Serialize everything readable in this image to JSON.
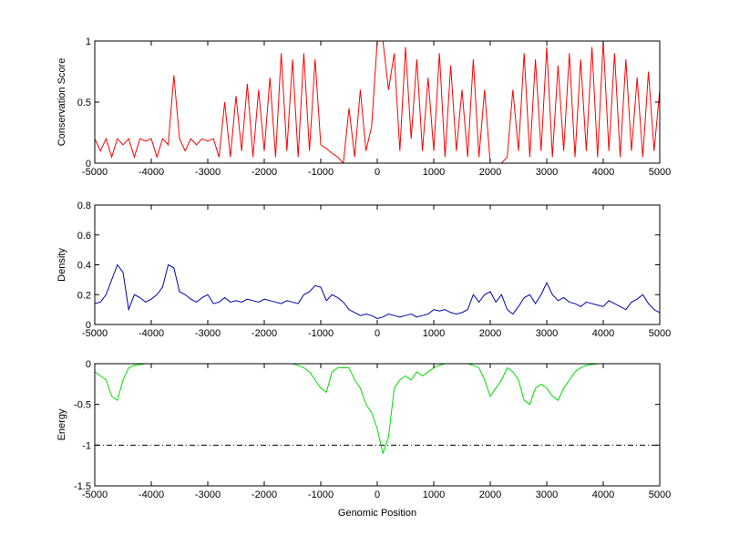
{
  "chart_data": [
    {
      "type": "line",
      "ylabel": "Conservation Score",
      "color": "#ff0000",
      "xlim": [
        -5000,
        5000
      ],
      "xticks": [
        -5000,
        -4000,
        -3000,
        -2000,
        -1000,
        0,
        1000,
        2000,
        3000,
        4000,
        5000
      ],
      "ylim": [
        0,
        1
      ],
      "yticks": [
        0,
        0.5,
        1
      ],
      "x": [
        -5000,
        -4900,
        -4800,
        -4700,
        -4600,
        -4500,
        -4400,
        -4300,
        -4200,
        -4100,
        -4000,
        -3900,
        -3800,
        -3700,
        -3600,
        -3500,
        -3400,
        -3300,
        -3200,
        -3100,
        -3000,
        -2900,
        -2800,
        -2700,
        -2600,
        -2500,
        -2400,
        -2300,
        -2200,
        -2100,
        -2000,
        -1900,
        -1800,
        -1700,
        -1600,
        -1500,
        -1400,
        -1300,
        -1200,
        -1100,
        -1000,
        -900,
        -800,
        -700,
        -600,
        -500,
        -400,
        -300,
        -200,
        -100,
        0,
        100,
        200,
        300,
        400,
        500,
        600,
        700,
        800,
        900,
        1000,
        1100,
        1200,
        1300,
        1400,
        1500,
        1600,
        1700,
        1800,
        1900,
        2000,
        2100,
        2200,
        2300,
        2400,
        2500,
        2600,
        2700,
        2800,
        2900,
        3000,
        3100,
        3200,
        3300,
        3400,
        3500,
        3600,
        3700,
        3800,
        3900,
        4000,
        4100,
        4200,
        4300,
        4400,
        4500,
        4600,
        4700,
        4800,
        4900,
        5000
      ],
      "values": [
        0.2,
        0.1,
        0.2,
        0.05,
        0.2,
        0.15,
        0.2,
        0.05,
        0.2,
        0.18,
        0.2,
        0.05,
        0.2,
        0.15,
        0.72,
        0.2,
        0.1,
        0.2,
        0.15,
        0.2,
        0.18,
        0.2,
        0.05,
        0.5,
        0.05,
        0.55,
        0.1,
        0.65,
        0.05,
        0.6,
        0.1,
        0.7,
        0.05,
        0.9,
        0.1,
        0.85,
        0.05,
        0.9,
        0.1,
        0.85,
        0.15,
        0.12,
        0.08,
        0.05,
        0,
        0.45,
        0.05,
        0.6,
        0.1,
        0.3,
        1,
        1,
        0.6,
        0.9,
        0.1,
        0.95,
        0.2,
        0.85,
        0.1,
        0.7,
        0.1,
        0.9,
        0.05,
        0.8,
        0.1,
        0.6,
        0.05,
        0.85,
        0.05,
        0.6,
        0,
        0,
        0,
        0.05,
        0.6,
        0.1,
        0.9,
        0.05,
        0.85,
        0.1,
        0.95,
        0.05,
        0.8,
        0.1,
        0.9,
        0.05,
        0.85,
        0.1,
        0.95,
        0.05,
        1,
        0.1,
        0.9,
        0.05,
        0.85,
        0.1,
        0.7,
        0.05,
        0.75,
        0.1,
        0.6
      ]
    },
    {
      "type": "line",
      "ylabel": "Density",
      "color": "#0000b0",
      "xlim": [
        -5000,
        5000
      ],
      "xticks": [
        -5000,
        -4000,
        -3000,
        -2000,
        -1000,
        0,
        1000,
        2000,
        3000,
        4000,
        5000
      ],
      "ylim": [
        0,
        0.8
      ],
      "yticks": [
        0,
        0.2,
        0.4,
        0.6,
        0.8
      ],
      "x": [
        -5000,
        -4900,
        -4800,
        -4700,
        -4600,
        -4500,
        -4400,
        -4300,
        -4200,
        -4100,
        -4000,
        -3900,
        -3800,
        -3700,
        -3600,
        -3500,
        -3400,
        -3300,
        -3200,
        -3100,
        -3000,
        -2900,
        -2800,
        -2700,
        -2600,
        -2500,
        -2400,
        -2300,
        -2200,
        -2100,
        -2000,
        -1900,
        -1800,
        -1700,
        -1600,
        -1500,
        -1400,
        -1300,
        -1200,
        -1100,
        -1000,
        -900,
        -800,
        -700,
        -600,
        -500,
        -400,
        -300,
        -200,
        -100,
        0,
        100,
        200,
        300,
        400,
        500,
        600,
        700,
        800,
        900,
        1000,
        1100,
        1200,
        1300,
        1400,
        1500,
        1600,
        1700,
        1800,
        1900,
        2000,
        2100,
        2200,
        2300,
        2400,
        2500,
        2600,
        2700,
        2800,
        2900,
        3000,
        3100,
        3200,
        3300,
        3400,
        3500,
        3600,
        3700,
        3800,
        3900,
        4000,
        4100,
        4200,
        4300,
        4400,
        4500,
        4600,
        4700,
        4800,
        4900,
        5000
      ],
      "values": [
        0.14,
        0.15,
        0.2,
        0.3,
        0.4,
        0.35,
        0.1,
        0.2,
        0.18,
        0.15,
        0.17,
        0.2,
        0.25,
        0.4,
        0.38,
        0.22,
        0.2,
        0.17,
        0.15,
        0.18,
        0.2,
        0.14,
        0.15,
        0.18,
        0.15,
        0.16,
        0.15,
        0.17,
        0.16,
        0.15,
        0.17,
        0.16,
        0.15,
        0.14,
        0.16,
        0.15,
        0.14,
        0.2,
        0.22,
        0.26,
        0.25,
        0.16,
        0.2,
        0.18,
        0.15,
        0.1,
        0.08,
        0.06,
        0.07,
        0.06,
        0.04,
        0.05,
        0.07,
        0.06,
        0.05,
        0.06,
        0.07,
        0.05,
        0.06,
        0.07,
        0.1,
        0.09,
        0.1,
        0.08,
        0.07,
        0.08,
        0.1,
        0.2,
        0.15,
        0.2,
        0.22,
        0.15,
        0.2,
        0.1,
        0.07,
        0.12,
        0.18,
        0.2,
        0.14,
        0.2,
        0.28,
        0.2,
        0.16,
        0.18,
        0.15,
        0.14,
        0.12,
        0.15,
        0.14,
        0.13,
        0.12,
        0.16,
        0.14,
        0.12,
        0.1,
        0.15,
        0.17,
        0.2,
        0.14,
        0.1,
        0.08
      ]
    },
    {
      "type": "line",
      "ylabel": "Energy",
      "xlabel": "Genomic Position",
      "color": "#00dd00",
      "xlim": [
        -5000,
        5000
      ],
      "xticks": [
        -5000,
        -4000,
        -3000,
        -2000,
        -1000,
        0,
        1000,
        2000,
        3000,
        4000,
        5000
      ],
      "ylim": [
        -1.5,
        0
      ],
      "yticks": [
        -1.5,
        -1,
        -0.5,
        0
      ],
      "reference_line": {
        "value": -1,
        "style": "dash-dot",
        "color": "#000000"
      },
      "x": [
        -5000,
        -4900,
        -4800,
        -4700,
        -4600,
        -4500,
        -4400,
        -4300,
        -4200,
        -4100,
        -4000,
        -3900,
        -3800,
        -3700,
        -3600,
        -3500,
        -3400,
        -3300,
        -3200,
        -3100,
        -3000,
        -2900,
        -2800,
        -2700,
        -2600,
        -2500,
        -2400,
        -2300,
        -2200,
        -2100,
        -2000,
        -1900,
        -1800,
        -1700,
        -1600,
        -1500,
        -1400,
        -1300,
        -1200,
        -1100,
        -1000,
        -900,
        -800,
        -700,
        -600,
        -500,
        -400,
        -300,
        -200,
        -100,
        0,
        100,
        200,
        300,
        400,
        500,
        600,
        700,
        800,
        900,
        1000,
        1100,
        1200,
        1300,
        1400,
        1500,
        1600,
        1700,
        1800,
        1900,
        2000,
        2100,
        2200,
        2300,
        2400,
        2500,
        2600,
        2700,
        2800,
        2900,
        3000,
        3100,
        3200,
        3300,
        3400,
        3500,
        3600,
        3700,
        3800,
        3900,
        4000,
        4100,
        4200,
        4300,
        4400,
        4500,
        4600,
        4700,
        4800,
        4900,
        5000
      ],
      "values": [
        -0.1,
        -0.15,
        -0.2,
        -0.4,
        -0.45,
        -0.2,
        -0.05,
        -0.02,
        -0.01,
        0,
        0,
        0,
        0,
        0,
        0,
        0,
        0,
        0,
        0,
        0,
        0,
        0,
        0,
        0,
        0,
        0,
        0,
        0,
        0,
        0,
        0,
        0,
        0,
        0,
        0,
        0,
        -0.02,
        -0.05,
        -0.1,
        -0.2,
        -0.3,
        -0.35,
        -0.1,
        -0.05,
        -0.05,
        -0.05,
        -0.2,
        -0.3,
        -0.5,
        -0.6,
        -0.8,
        -1.1,
        -0.9,
        -0.3,
        -0.2,
        -0.15,
        -0.2,
        -0.1,
        -0.15,
        -0.1,
        -0.05,
        -0.02,
        0,
        0,
        0,
        0,
        0,
        -0.02,
        -0.05,
        -0.2,
        -0.4,
        -0.3,
        -0.2,
        -0.05,
        -0.1,
        -0.2,
        -0.45,
        -0.5,
        -0.3,
        -0.25,
        -0.3,
        -0.4,
        -0.45,
        -0.3,
        -0.2,
        -0.1,
        -0.05,
        -0.02,
        -0.01,
        0,
        0,
        null,
        null,
        null,
        null,
        null,
        null,
        null,
        null,
        null,
        null
      ]
    }
  ]
}
